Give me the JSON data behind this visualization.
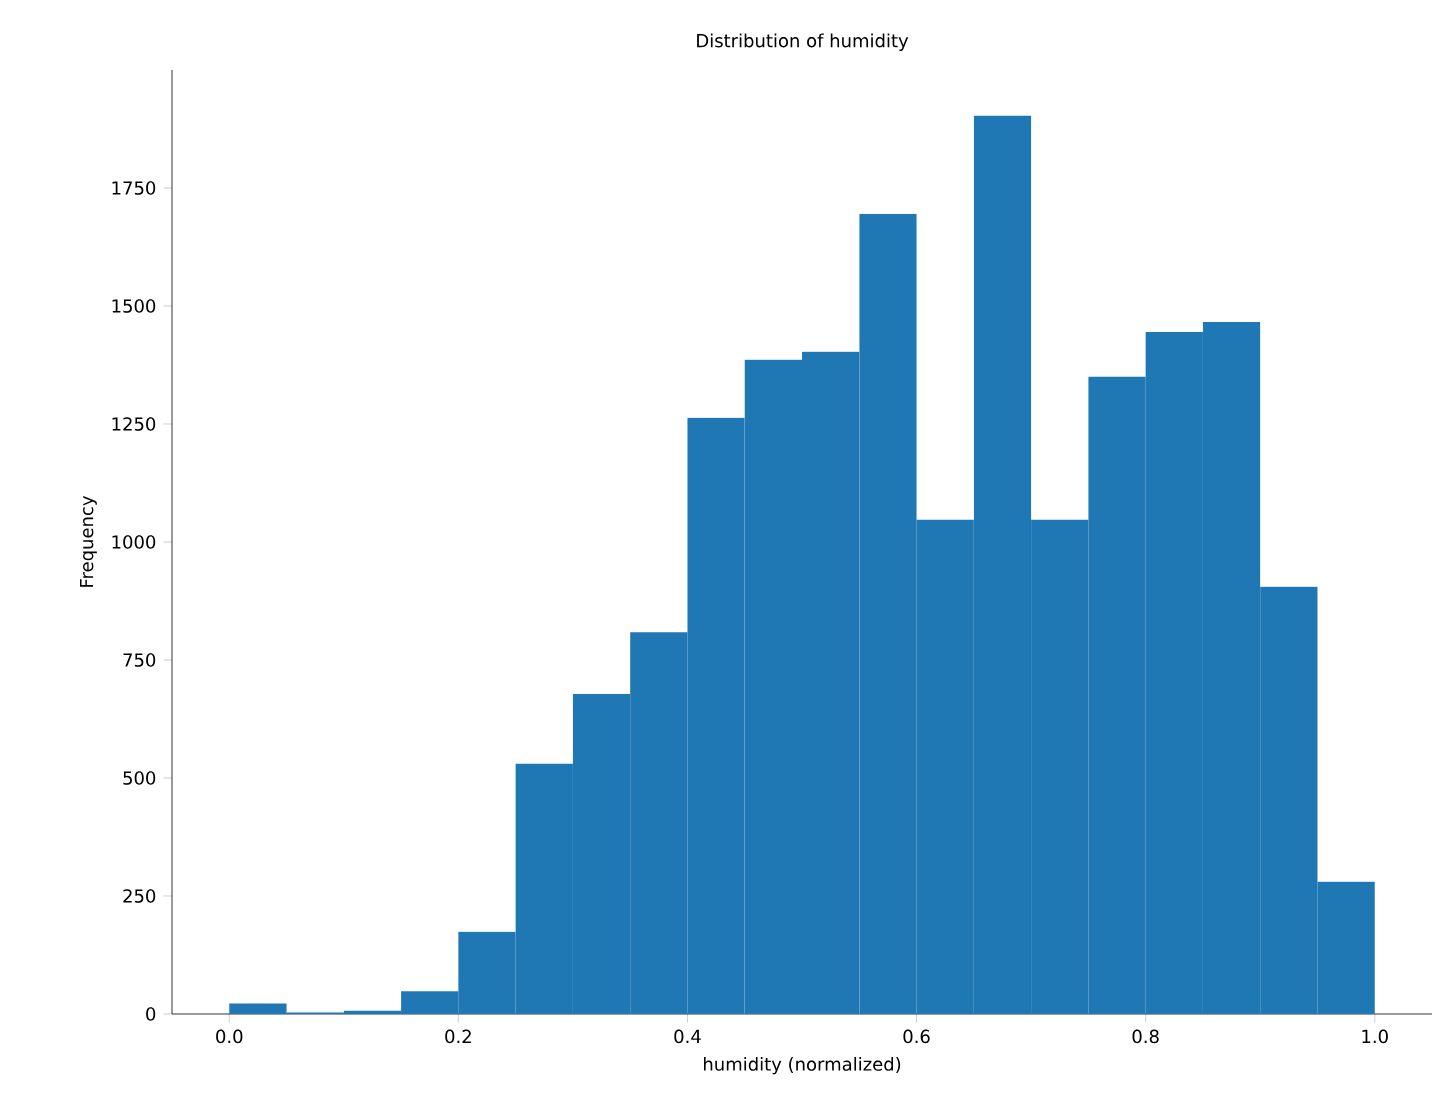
{
  "chart_data": {
    "type": "histogram",
    "title": "Distribution of humidity",
    "xlabel": "humidity (normalized)",
    "ylabel": "Frequency",
    "bins": [
      0.0,
      0.05,
      0.1,
      0.15,
      0.2,
      0.25,
      0.3,
      0.35,
      0.4,
      0.45,
      0.5,
      0.55,
      0.6,
      0.65,
      0.7,
      0.75,
      0.8,
      0.85,
      0.9,
      0.95,
      1.0
    ],
    "values": [
      22,
      3,
      7,
      48,
      174,
      530,
      678,
      809,
      1263,
      1386,
      1403,
      1695,
      1047,
      1903,
      1047,
      1350,
      1445,
      1466,
      905,
      280
    ],
    "color": "#1f77b4",
    "xlim": [
      -0.05,
      1.05
    ],
    "ylim": [
      0,
      2000
    ],
    "xticks": [
      {
        "value": 0,
        "label": "0.0"
      },
      0.2,
      0.4,
      0.6,
      0.8,
      {
        "value": 1,
        "label": "1.0"
      }
    ],
    "yticks": [
      0,
      250,
      500,
      750,
      1000,
      1250,
      1500,
      1750
    ],
    "grid": false
  }
}
